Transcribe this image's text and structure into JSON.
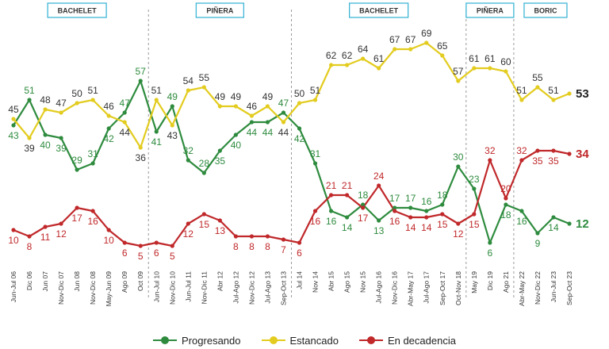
{
  "chart_data": {
    "type": "line",
    "title": "",
    "xlabel": "",
    "ylabel": "",
    "ylim": [
      0,
      80
    ],
    "grid": false,
    "legend_placement": "bottom",
    "periods": [
      {
        "label": "BACHELET",
        "from": 0,
        "to": 8
      },
      {
        "label": "PIÑERA",
        "from": 9,
        "to": 17
      },
      {
        "label": "BACHELET",
        "from": 18,
        "to": 28
      },
      {
        "label": "PIÑERA",
        "from": 29,
        "to": 31
      },
      {
        "label": "BORIC",
        "from": 32,
        "to": 35
      }
    ],
    "categories": [
      "Jun-Jul 06",
      "Dic 06",
      "Jun 07",
      "Nov-Dic 07",
      "Jun 08",
      "Nov-Dic 08",
      "May-Jun 09",
      "Ago 09",
      "Oct 09",
      "Jun-Jul 10",
      "Nov-Dic 10",
      "Jun-Jul 11",
      "Nov-Dic 11",
      "Abr 12",
      "Jul-Ago 12",
      "Nov-Dic 12",
      "Jul-Ago 13",
      "Sep-Oct 13",
      "Jul 14",
      "Nov 14",
      "Abr 15",
      "Ago 15",
      "Nov 15",
      "Jul-Ago 16",
      "Nov-Dic 16",
      "Abr-May 17",
      "Jul-Ago 17",
      "Sep-Oct 17",
      "Oct-Nov 18",
      "May 19",
      "Dic 19",
      "Ago 21",
      "Abr-May 22",
      "Nov-Dic 22",
      "Jun-Jul 23",
      "Sep-Oct 23"
    ],
    "series": [
      {
        "name": "Progresando",
        "color": "#2e8b3e",
        "values": [
          43,
          51,
          40,
          39,
          29,
          31,
          42,
          47,
          57,
          41,
          49,
          32,
          28,
          35,
          40,
          44,
          44,
          47,
          42,
          31,
          16,
          14,
          18,
          13,
          17,
          17,
          16,
          18,
          30,
          23,
          6,
          18,
          16,
          9,
          14,
          12
        ],
        "labels": [
          "43",
          "51",
          "40",
          "39",
          "29",
          "31",
          "42",
          "47",
          "57",
          "41",
          "49",
          "32",
          "28",
          "35",
          "40",
          "44",
          "44",
          "47",
          "42",
          "31",
          "16",
          "14",
          "18",
          "13",
          "17",
          "17",
          "16",
          "18",
          "30",
          "23",
          "6",
          "18",
          "16",
          "9",
          "14",
          "12"
        ]
      },
      {
        "name": "Estancado",
        "color": "#e3cc1f",
        "values": [
          45,
          39,
          48,
          47,
          50,
          51,
          46,
          44,
          36,
          51,
          43,
          54,
          55,
          49,
          49,
          46,
          49,
          44,
          50,
          51,
          62,
          62,
          64,
          61,
          67,
          67,
          69,
          65,
          57,
          61,
          61,
          60,
          51,
          55,
          51,
          53
        ],
        "labels": [
          "45",
          "39",
          "48",
          "47",
          "50",
          "51",
          "46",
          "44",
          "36",
          "51",
          "43",
          "54",
          "55",
          "49",
          "49",
          "46",
          "49",
          "44",
          "50",
          "51",
          "62",
          "62",
          "64",
          "61",
          "67",
          "67",
          "69",
          "65",
          "57",
          "61",
          "61",
          "60",
          "51",
          "55",
          "51",
          "53"
        ]
      },
      {
        "name": "En decadencia",
        "color": "#c0282a",
        "values": [
          10,
          8,
          11,
          12,
          17,
          16,
          10,
          6,
          5,
          6,
          5,
          12,
          15,
          13,
          8,
          8,
          8,
          7,
          6,
          16,
          21,
          21,
          17,
          24,
          16,
          14,
          14,
          15,
          12,
          15,
          32,
          20,
          32,
          35,
          35,
          34
        ],
        "labels": [
          "10",
          "8",
          "11",
          "12",
          "17",
          "16",
          "10",
          "6",
          "5",
          "6",
          "5",
          "12",
          "15",
          "13",
          "8",
          "8",
          "8",
          "7",
          "6",
          "16",
          "21",
          "21",
          "17",
          "24",
          "16",
          "14",
          "14",
          "15",
          "12",
          "15",
          "32",
          "20",
          "32",
          "35",
          "35",
          "34"
        ]
      }
    ]
  }
}
